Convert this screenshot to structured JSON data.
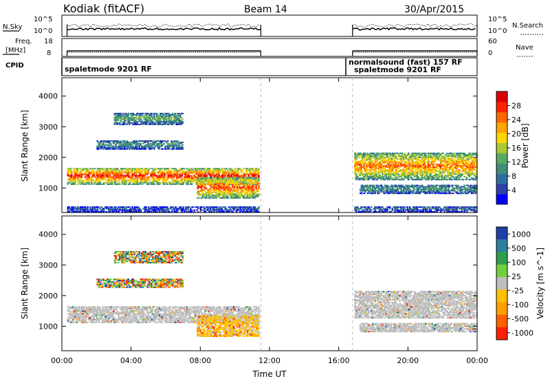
{
  "header": {
    "station": "Kodiak (fitACF)",
    "beam": "Beam 14",
    "date": "30/Apr/2015"
  },
  "strip_labels": {
    "nsky": "N.Sky",
    "nsky_ticks": [
      "10^5",
      "10^0"
    ],
    "nsearch": "N.Search",
    "nsearch_ticks": [
      "10^5",
      "10^0"
    ],
    "freq": "Freq.",
    "freq_unit": "[MHz]",
    "freq_ticks": [
      "18",
      "8"
    ],
    "nave": "Nave",
    "nave_ticks": [
      "60",
      "0"
    ],
    "cpid": "CPID",
    "cpid_1": "spaletmode 9201 RF",
    "cpid_2a": "normalsound (fast) 157 RF",
    "cpid_2b": "spaletmode 9201 RF"
  },
  "chart_data": [
    {
      "type": "heatmap",
      "name": "power",
      "ylabel": "Slant Range [km]",
      "xlabel": "Time UT",
      "x_ticks": [
        "00:00",
        "04:00",
        "08:00",
        "12:00",
        "16:00",
        "20:00",
        "00:00"
      ],
      "x_tick_hours": [
        0,
        4,
        8,
        12,
        16,
        20,
        24
      ],
      "y_ticks": [
        1000,
        2000,
        3000,
        4000
      ],
      "ylim": [
        200,
        4600
      ],
      "data_gap_hours": [
        11.5,
        16.8
      ],
      "colorbar_label": "Power [dB]",
      "colorbar_ticks": [
        "4",
        "8",
        "12",
        "16",
        "20",
        "24",
        "28"
      ],
      "colorbar_colors": [
        "#0000ff",
        "#2e3fa8",
        "#2f6fa0",
        "#3f8f7a",
        "#5aaa60",
        "#a8c835",
        "#ffd700",
        "#ffa500",
        "#ff6600",
        "#ff2200",
        "#dd0000"
      ],
      "bands": [
        {
          "t": [
            0.3,
            11.4
          ],
          "r": [
            1150,
            1700
          ],
          "level": 0.75
        },
        {
          "t": [
            7.8,
            11.4
          ],
          "r": [
            700,
            1400
          ],
          "level": 0.7
        },
        {
          "t": [
            2.0,
            7.0
          ],
          "r": [
            2300,
            2600
          ],
          "level": 0.3
        },
        {
          "t": [
            3.0,
            7.0
          ],
          "r": [
            3100,
            3500
          ],
          "level": 0.35
        },
        {
          "t": [
            16.9,
            24.0
          ],
          "r": [
            1300,
            2200
          ],
          "level": 0.65
        },
        {
          "t": [
            17.2,
            24.0
          ],
          "r": [
            850,
            1150
          ],
          "level": 0.3
        },
        {
          "t": [
            0.3,
            11.4
          ],
          "r": [
            250,
            450
          ],
          "level": 0.15
        },
        {
          "t": [
            16.9,
            24.0
          ],
          "r": [
            250,
            450
          ],
          "level": 0.2
        }
      ]
    },
    {
      "type": "heatmap",
      "name": "velocity",
      "ylabel": "Slant Range [km]",
      "xlabel": "Time UT",
      "x_ticks": [
        "00:00",
        "04:00",
        "08:00",
        "12:00",
        "16:00",
        "20:00",
        "00:00"
      ],
      "x_tick_hours": [
        0,
        4,
        8,
        12,
        16,
        20,
        24
      ],
      "y_ticks": [
        1000,
        2000,
        3000,
        4000
      ],
      "ylim": [
        200,
        4600
      ],
      "data_gap_hours": [
        11.5,
        16.8
      ],
      "colorbar_label": "Velocity [m s^-1]",
      "colorbar_ticks": [
        "1000",
        "500",
        "100",
        "25",
        "-25",
        "-100",
        "-500",
        "-1000"
      ],
      "colorbar_colors": [
        "#1f3fa8",
        "#2f7f9f",
        "#2f9f4f",
        "#6fcf3f",
        "#bebebe",
        "#ffc000",
        "#ffa000",
        "#ff6000",
        "#ff2000"
      ],
      "bands": [
        {
          "t": [
            0.3,
            11.4
          ],
          "r": [
            1150,
            1700
          ],
          "class": "ground"
        },
        {
          "t": [
            7.8,
            11.4
          ],
          "r": [
            700,
            1400
          ],
          "class": "negative"
        },
        {
          "t": [
            2.0,
            7.0
          ],
          "r": [
            2300,
            2600
          ],
          "class": "mixed"
        },
        {
          "t": [
            3.0,
            7.0
          ],
          "r": [
            3100,
            3500
          ],
          "class": "mixed"
        },
        {
          "t": [
            16.9,
            24.0
          ],
          "r": [
            1300,
            2200
          ],
          "class": "ground"
        },
        {
          "t": [
            17.2,
            24.0
          ],
          "r": [
            850,
            1150
          ],
          "class": "ground"
        }
      ]
    }
  ]
}
